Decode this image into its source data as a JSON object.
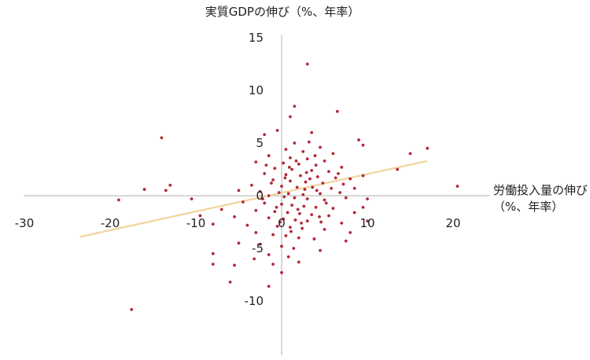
{
  "chart_data": {
    "type": "scatter",
    "title": "",
    "ylabel": "実質GDPの伸び（%、年率）",
    "xlabel_line1": "労働投入量の伸び",
    "xlabel_line2": "（%、年率）",
    "xlim": [
      -30,
      25
    ],
    "ylim": [
      -15,
      15
    ],
    "xticks": [
      -30,
      -20,
      -10,
      0,
      10,
      20
    ],
    "yticks": [
      -10,
      -5,
      0,
      5,
      10,
      15
    ],
    "grid": false,
    "legend": "none",
    "colors": {
      "points": "#b22a36",
      "trend": "#f0d49a",
      "axis": "#bfbfbf"
    },
    "trend_line": {
      "x": [
        -23.5,
        17
      ],
      "y": [
        -3.9,
        3.3
      ]
    },
    "points": [
      {
        "x": 3,
        "y": 12.5
      },
      {
        "x": 1.5,
        "y": 8.5
      },
      {
        "x": 6.5,
        "y": 8
      },
      {
        "x": 1,
        "y": 7.5
      },
      {
        "x": -0.5,
        "y": 6.2
      },
      {
        "x": -2,
        "y": 5.8
      },
      {
        "x": 3.5,
        "y": 6
      },
      {
        "x": 9,
        "y": 5.3
      },
      {
        "x": 9.5,
        "y": 4.8
      },
      {
        "x": 17,
        "y": 4.5
      },
      {
        "x": 15,
        "y": 4
      },
      {
        "x": -14,
        "y": 5.5
      },
      {
        "x": 1.5,
        "y": 5
      },
      {
        "x": 3.2,
        "y": 5.1
      },
      {
        "x": 4.5,
        "y": 4.6
      },
      {
        "x": 0.5,
        "y": 4.4
      },
      {
        "x": 2.5,
        "y": 4.2
      },
      {
        "x": 6,
        "y": 4
      },
      {
        "x": -1.5,
        "y": 3.8
      },
      {
        "x": 1,
        "y": 3.6
      },
      {
        "x": 3,
        "y": 3.5
      },
      {
        "x": 5,
        "y": 3.3
      },
      {
        "x": -3,
        "y": 3.2
      },
      {
        "x": 0.2,
        "y": 3.1
      },
      {
        "x": 2,
        "y": 3
      },
      {
        "x": 4,
        "y": 2.9
      },
      {
        "x": 7,
        "y": 2.7
      },
      {
        "x": -0.8,
        "y": 2.6
      },
      {
        "x": 1.2,
        "y": 2.5
      },
      {
        "x": 3.5,
        "y": 2.4
      },
      {
        "x": 5.5,
        "y": 2.3
      },
      {
        "x": 13.5,
        "y": 2.5
      },
      {
        "x": -2,
        "y": 2.1
      },
      {
        "x": 0.5,
        "y": 2
      },
      {
        "x": 2.2,
        "y": 1.9
      },
      {
        "x": 4.2,
        "y": 1.8
      },
      {
        "x": 6.3,
        "y": 1.7
      },
      {
        "x": 8,
        "y": 1.6
      },
      {
        "x": 9.5,
        "y": 1.9
      },
      {
        "x": -1,
        "y": 1.5
      },
      {
        "x": 1,
        "y": 1.4
      },
      {
        "x": 2.8,
        "y": 1.3
      },
      {
        "x": 4.8,
        "y": 1.2
      },
      {
        "x": 7.2,
        "y": 1.1
      },
      {
        "x": -3.5,
        "y": 1
      },
      {
        "x": 0,
        "y": 0.9
      },
      {
        "x": 1.8,
        "y": 0.8
      },
      {
        "x": 3.6,
        "y": 0.8
      },
      {
        "x": 5.8,
        "y": 0.7
      },
      {
        "x": 8.5,
        "y": 0.7
      },
      {
        "x": -13,
        "y": 1
      },
      {
        "x": -16,
        "y": 0.6
      },
      {
        "x": -13.5,
        "y": 0.5
      },
      {
        "x": 20.5,
        "y": 0.9
      },
      {
        "x": -5,
        "y": 0.5
      },
      {
        "x": -2.5,
        "y": 0.4
      },
      {
        "x": -0.3,
        "y": 0.3
      },
      {
        "x": 0.8,
        "y": 0.2
      },
      {
        "x": 2.5,
        "y": 0.1
      },
      {
        "x": 4.5,
        "y": 0.2
      },
      {
        "x": 6.8,
        "y": 0.3
      },
      {
        "x": -1.5,
        "y": 0
      },
      {
        "x": 0.3,
        "y": -0.1
      },
      {
        "x": 1.5,
        "y": -0.2
      },
      {
        "x": 3,
        "y": -0.3
      },
      {
        "x": 5,
        "y": -0.4
      },
      {
        "x": 7.5,
        "y": -0.2
      },
      {
        "x": 10,
        "y": -0.3
      },
      {
        "x": -10.5,
        "y": -0.3
      },
      {
        "x": -19,
        "y": -0.4
      },
      {
        "x": -4.5,
        "y": -0.6
      },
      {
        "x": -2,
        "y": -0.7
      },
      {
        "x": 0,
        "y": -0.8
      },
      {
        "x": 1.2,
        "y": -0.9
      },
      {
        "x": 2.6,
        "y": -1
      },
      {
        "x": 4,
        "y": -1.1
      },
      {
        "x": 6,
        "y": -1.2
      },
      {
        "x": 9.5,
        "y": -1.1
      },
      {
        "x": -7,
        "y": -1.3
      },
      {
        "x": -3,
        "y": -1.4
      },
      {
        "x": -0.8,
        "y": -1.5
      },
      {
        "x": 0.7,
        "y": -1.6
      },
      {
        "x": 2.1,
        "y": -1.7
      },
      {
        "x": 3.5,
        "y": -1.8
      },
      {
        "x": 5.5,
        "y": -1.9
      },
      {
        "x": 8.5,
        "y": -1.6
      },
      {
        "x": -9.5,
        "y": -1.9
      },
      {
        "x": -5.5,
        "y": -2
      },
      {
        "x": -1.5,
        "y": -2.1
      },
      {
        "x": 0.2,
        "y": -2.2
      },
      {
        "x": 1.6,
        "y": -2.3
      },
      {
        "x": 3,
        "y": -2.4
      },
      {
        "x": 4.6,
        "y": -2.5
      },
      {
        "x": 7,
        "y": -2.6
      },
      {
        "x": 10,
        "y": -2.4
      },
      {
        "x": -8,
        "y": -2.7
      },
      {
        "x": -4,
        "y": -2.8
      },
      {
        "x": -0.5,
        "y": -2.9
      },
      {
        "x": 1,
        "y": -3
      },
      {
        "x": 2.4,
        "y": -3.1
      },
      {
        "x": 5,
        "y": -3.2
      },
      {
        "x": 8,
        "y": -3.5
      },
      {
        "x": -3,
        "y": -3.5
      },
      {
        "x": -1,
        "y": -3.7
      },
      {
        "x": 0.5,
        "y": -3.8
      },
      {
        "x": 2,
        "y": -4
      },
      {
        "x": 3.8,
        "y": -4.1
      },
      {
        "x": 7.5,
        "y": -4.3
      },
      {
        "x": -5,
        "y": -4.5
      },
      {
        "x": -2.5,
        "y": -4.6
      },
      {
        "x": 0,
        "y": -4.8
      },
      {
        "x": 1.4,
        "y": -5
      },
      {
        "x": 4.5,
        "y": -5.2
      },
      {
        "x": -8,
        "y": -5.5
      },
      {
        "x": -1.5,
        "y": -5.6
      },
      {
        "x": 0.8,
        "y": -5.8
      },
      {
        "x": -3.2,
        "y": -6
      },
      {
        "x": 2,
        "y": -6.3
      },
      {
        "x": -8,
        "y": -6.5
      },
      {
        "x": -1,
        "y": -6.5
      },
      {
        "x": -5.5,
        "y": -6.6
      },
      {
        "x": 0,
        "y": -7.3
      },
      {
        "x": -6,
        "y": -8.2
      },
      {
        "x": -1.5,
        "y": -8.6
      },
      {
        "x": -17.5,
        "y": -10.8
      },
      {
        "x": -1.2,
        "y": 1.2
      },
      {
        "x": 2.9,
        "y": 2.2
      },
      {
        "x": 4.1,
        "y": 0.5
      },
      {
        "x": -0.6,
        "y": -1.1
      },
      {
        "x": 1.9,
        "y": -1.3
      },
      {
        "x": 3.3,
        "y": 1.6
      },
      {
        "x": -2.2,
        "y": -0.3
      },
      {
        "x": 5.2,
        "y": -0.7
      },
      {
        "x": 0.9,
        "y": 2.7
      },
      {
        "x": 2.3,
        "y": -2.6
      },
      {
        "x": -1.8,
        "y": 2.9
      },
      {
        "x": 6.6,
        "y": 2.1
      },
      {
        "x": 1.1,
        "y": -3.4
      },
      {
        "x": 3.9,
        "y": 3.8
      },
      {
        "x": -0.2,
        "y": -2.5
      },
      {
        "x": 2.7,
        "y": 0.6
      },
      {
        "x": 4.4,
        "y": -2
      },
      {
        "x": 0.4,
        "y": 1.7
      },
      {
        "x": 1.7,
        "y": 3.3
      }
    ]
  }
}
